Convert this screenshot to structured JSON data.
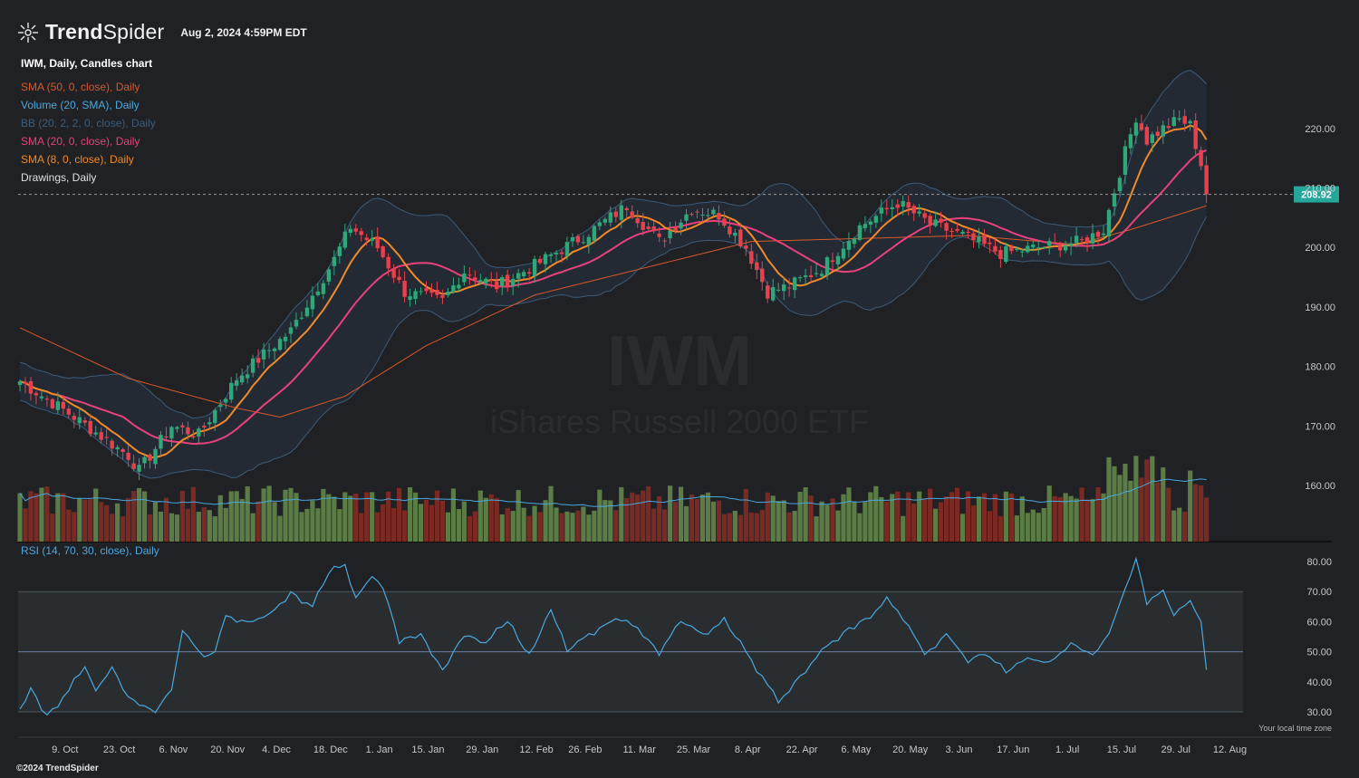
{
  "header": {
    "brand_bold": "Trend",
    "brand_light": "Spider",
    "timestamp": "Aug 2, 2024 4:59PM EDT"
  },
  "legend": [
    {
      "label": "IWM, Daily, Candles chart",
      "color": "#ffffff"
    },
    {
      "label": "SMA (50, 0, close), Daily",
      "color": "#d9582a"
    },
    {
      "label": "Volume (20, SMA), Daily",
      "color": "#4aa8e0"
    },
    {
      "label": "BB (20, 2, 2, 0, close), Daily",
      "color": "#3c5c7a"
    },
    {
      "label": "SMA (20, 0, close), Daily",
      "color": "#e8417c"
    },
    {
      "label": "SMA (8, 0, close), Daily",
      "color": "#f08a2a"
    },
    {
      "label": "Drawings, Daily",
      "color": "#e0e0e0"
    }
  ],
  "watermark": {
    "symbol": "IWM",
    "name": "iShares Russell 2000 ETF"
  },
  "rsi_label": "RSI (14, 70, 30, close), Daily",
  "footer": {
    "copyright": "©2024 TrendSpider",
    "timezone_note": "Your local time zone"
  },
  "colors": {
    "background": "#202124",
    "up_candle": "#2ea879",
    "down_candle": "#e8414d",
    "up_volume": "#5b7d45",
    "down_volume": "#7a2a22",
    "price_badge": "#26a69a",
    "sma8": "#f08a2a",
    "sma20": "#e8417c",
    "sma50": "#d9582a",
    "bb": "#3c5c7a",
    "rsi": "#4aa8e0"
  },
  "chart_data": {
    "type": "candlestick",
    "symbol": "IWM",
    "interval": "Daily",
    "last_price": 208.92,
    "last_price_label": "208.92",
    "price_axis": {
      "ticks": [
        160,
        170,
        180,
        190,
        200,
        210,
        220
      ],
      "tick_labels": [
        "160.00",
        "170.00",
        "180.00",
        "190.00",
        "200.00",
        "210.00",
        "220.00"
      ],
      "range": [
        150.5,
        232
      ]
    },
    "rsi_axis": {
      "ticks": [
        30,
        40,
        50,
        60,
        70,
        80
      ],
      "tick_labels": [
        "30.00",
        "40.00",
        "50.00",
        "60.00",
        "70.00",
        "80.00"
      ],
      "range": [
        29,
        84
      ],
      "overbought": 70,
      "oversold": 30
    },
    "x_axis": {
      "tick_labels": [
        "9. Oct",
        "23. Oct",
        "6. Nov",
        "20. Nov",
        "4. Dec",
        "18. Dec",
        "1. Jan",
        "15. Jan",
        "29. Jan",
        "12. Feb",
        "26. Feb",
        "11. Mar",
        "25. Mar",
        "8. Apr",
        "22. Apr",
        "6. May",
        "20. May",
        "3. Jun",
        "17. Jun",
        "1. Jul",
        "15. Jul",
        "29. Jul",
        "12. Aug"
      ],
      "tick_bar_index": [
        9,
        19,
        29,
        39,
        48,
        58,
        67,
        76,
        86,
        96,
        105,
        115,
        125,
        135,
        145,
        155,
        165,
        174,
        184,
        194,
        204,
        214,
        224
      ]
    },
    "close_points": [
      {
        "bar": 0,
        "close": 177.5
      },
      {
        "bar": 10,
        "close": 171.5
      },
      {
        "bar": 20,
        "close": 165.0
      },
      {
        "bar": 22,
        "close": 162.5
      },
      {
        "bar": 28,
        "close": 170.0
      },
      {
        "bar": 33,
        "close": 168.5
      },
      {
        "bar": 40,
        "close": 178.0
      },
      {
        "bar": 50,
        "close": 186.0
      },
      {
        "bar": 58,
        "close": 198.0
      },
      {
        "bar": 61,
        "close": 203.5
      },
      {
        "bar": 66,
        "close": 200.0
      },
      {
        "bar": 71,
        "close": 192.5
      },
      {
        "bar": 78,
        "close": 191.0
      },
      {
        "bar": 82,
        "close": 196.0
      },
      {
        "bar": 88,
        "close": 193.5
      },
      {
        "bar": 96,
        "close": 197.5
      },
      {
        "bar": 105,
        "close": 202.5
      },
      {
        "bar": 112,
        "close": 207.0
      },
      {
        "bar": 118,
        "close": 201.0
      },
      {
        "bar": 124,
        "close": 206.5
      },
      {
        "bar": 129,
        "close": 205.5
      },
      {
        "bar": 134,
        "close": 200.0
      },
      {
        "bar": 138,
        "close": 192.5
      },
      {
        "bar": 142,
        "close": 193.5
      },
      {
        "bar": 148,
        "close": 196.5
      },
      {
        "bar": 155,
        "close": 203.5
      },
      {
        "bar": 162,
        "close": 207.5
      },
      {
        "bar": 168,
        "close": 204.0
      },
      {
        "bar": 174,
        "close": 202.0
      },
      {
        "bar": 181,
        "close": 199.0
      },
      {
        "bar": 188,
        "close": 200.0
      },
      {
        "bar": 196,
        "close": 201.0
      },
      {
        "bar": 200,
        "close": 203.0
      },
      {
        "bar": 204,
        "close": 216.0
      },
      {
        "bar": 206,
        "close": 222.0
      },
      {
        "bar": 208,
        "close": 218.0
      },
      {
        "bar": 211,
        "close": 220.0
      },
      {
        "bar": 214,
        "close": 221.5
      },
      {
        "bar": 216,
        "close": 220.5
      },
      {
        "bar": 218,
        "close": 214.0
      },
      {
        "bar": 219,
        "close": 208.92
      }
    ],
    "rsi_points": [
      {
        "bar": 0,
        "v": 31
      },
      {
        "bar": 2,
        "v": 38
      },
      {
        "bar": 5,
        "v": 29
      },
      {
        "bar": 9,
        "v": 37
      },
      {
        "bar": 12,
        "v": 45
      },
      {
        "bar": 14,
        "v": 37
      },
      {
        "bar": 17,
        "v": 45
      },
      {
        "bar": 20,
        "v": 35
      },
      {
        "bar": 23,
        "v": 32
      },
      {
        "bar": 25,
        "v": 30
      },
      {
        "bar": 28,
        "v": 38
      },
      {
        "bar": 30,
        "v": 57
      },
      {
        "bar": 34,
        "v": 48
      },
      {
        "bar": 36,
        "v": 50
      },
      {
        "bar": 38,
        "v": 62
      },
      {
        "bar": 42,
        "v": 60
      },
      {
        "bar": 46,
        "v": 62
      },
      {
        "bar": 50,
        "v": 70
      },
      {
        "bar": 54,
        "v": 65
      },
      {
        "bar": 57,
        "v": 76
      },
      {
        "bar": 60,
        "v": 79
      },
      {
        "bar": 62,
        "v": 68
      },
      {
        "bar": 65,
        "v": 75
      },
      {
        "bar": 67,
        "v": 72
      },
      {
        "bar": 70,
        "v": 54
      },
      {
        "bar": 74,
        "v": 56
      },
      {
        "bar": 78,
        "v": 44
      },
      {
        "bar": 82,
        "v": 56
      },
      {
        "bar": 86,
        "v": 53
      },
      {
        "bar": 90,
        "v": 60
      },
      {
        "bar": 94,
        "v": 48
      },
      {
        "bar": 98,
        "v": 64
      },
      {
        "bar": 101,
        "v": 50
      },
      {
        "bar": 105,
        "v": 56
      },
      {
        "bar": 110,
        "v": 61
      },
      {
        "bar": 114,
        "v": 58
      },
      {
        "bar": 118,
        "v": 50
      },
      {
        "bar": 122,
        "v": 60
      },
      {
        "bar": 126,
        "v": 56
      },
      {
        "bar": 130,
        "v": 60
      },
      {
        "bar": 134,
        "v": 50
      },
      {
        "bar": 137,
        "v": 42
      },
      {
        "bar": 140,
        "v": 33
      },
      {
        "bar": 143,
        "v": 40
      },
      {
        "bar": 146,
        "v": 46
      },
      {
        "bar": 149,
        "v": 52
      },
      {
        "bar": 153,
        "v": 58
      },
      {
        "bar": 157,
        "v": 62
      },
      {
        "bar": 160,
        "v": 67
      },
      {
        "bar": 163,
        "v": 62
      },
      {
        "bar": 167,
        "v": 49
      },
      {
        "bar": 171,
        "v": 56
      },
      {
        "bar": 175,
        "v": 47
      },
      {
        "bar": 178,
        "v": 50
      },
      {
        "bar": 182,
        "v": 43
      },
      {
        "bar": 186,
        "v": 48
      },
      {
        "bar": 190,
        "v": 46
      },
      {
        "bar": 194,
        "v": 53
      },
      {
        "bar": 198,
        "v": 49
      },
      {
        "bar": 201,
        "v": 56
      },
      {
        "bar": 204,
        "v": 71
      },
      {
        "bar": 206,
        "v": 81
      },
      {
        "bar": 208,
        "v": 67
      },
      {
        "bar": 211,
        "v": 70
      },
      {
        "bar": 213,
        "v": 62
      },
      {
        "bar": 216,
        "v": 67
      },
      {
        "bar": 218,
        "v": 60
      },
      {
        "bar": 219,
        "v": 44
      }
    ],
    "sma50_points": [
      {
        "bar": 0,
        "v": 186.5
      },
      {
        "bar": 20,
        "v": 178.0
      },
      {
        "bar": 40,
        "v": 173.0
      },
      {
        "bar": 48,
        "v": 171.5
      },
      {
        "bar": 60,
        "v": 175.0
      },
      {
        "bar": 75,
        "v": 183.5
      },
      {
        "bar": 95,
        "v": 192.0
      },
      {
        "bar": 115,
        "v": 196.5
      },
      {
        "bar": 135,
        "v": 201.0
      },
      {
        "bar": 155,
        "v": 201.5
      },
      {
        "bar": 175,
        "v": 202.0
      },
      {
        "bar": 195,
        "v": 200.5
      },
      {
        "bar": 205,
        "v": 203.0
      },
      {
        "bar": 219,
        "v": 207.0
      }
    ],
    "volume_scale": {
      "max": 13.0,
      "avg": 6.5
    }
  }
}
